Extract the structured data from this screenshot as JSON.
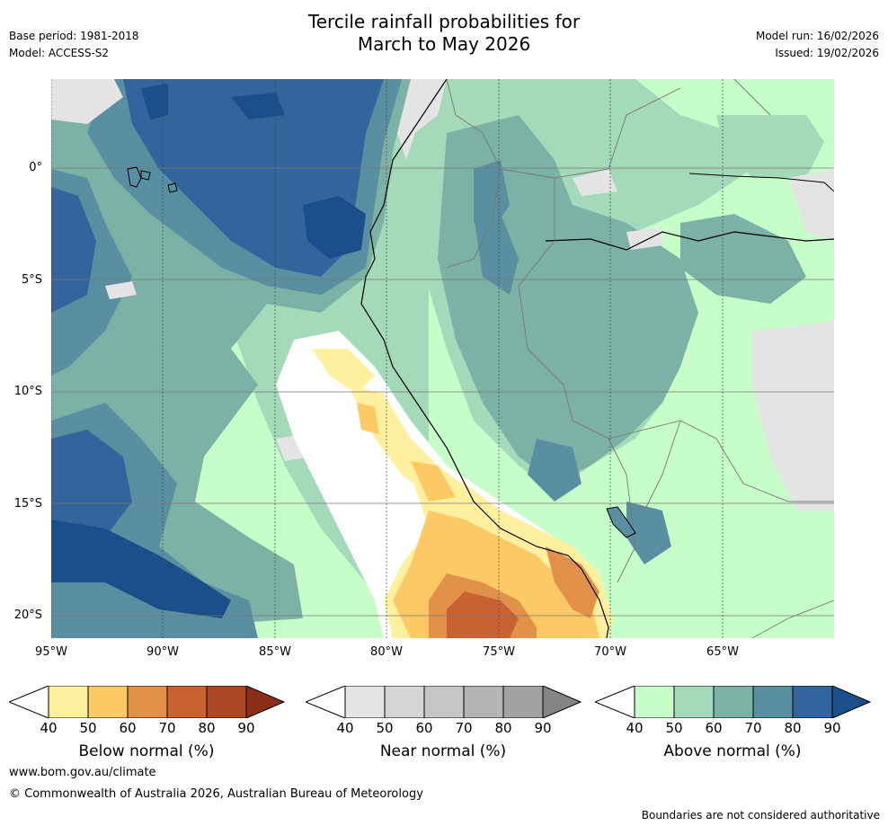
{
  "title": {
    "line1": "Tercile rainfall probabilities for",
    "line2": "March to May 2026"
  },
  "header": {
    "base_period": "Base period: 1981-2018",
    "model": "Model: ACCESS-S2",
    "model_run": "Model run: 16/02/2026",
    "issued": "Issued: 19/02/2026"
  },
  "map": {
    "lat_ticks": [
      "0°",
      "5°S",
      "10°S",
      "15°S",
      "20°S"
    ],
    "lon_ticks": [
      "95°W",
      "90°W",
      "85°W",
      "80°W",
      "75°W",
      "70°W",
      "65°W"
    ]
  },
  "colorbars": [
    {
      "label": "Below normal (%)",
      "ticks": [
        "40",
        "50",
        "60",
        "70",
        "80",
        "90"
      ],
      "colors": [
        "#fff0a0",
        "#fdc965",
        "#e1914a",
        "#c96232",
        "#ad4824",
        "#8c2e18"
      ]
    },
    {
      "label": "Near normal (%)",
      "ticks": [
        "40",
        "50",
        "60",
        "70",
        "80",
        "90"
      ],
      "colors": [
        "#e4e4e4",
        "#d5d5d5",
        "#c6c6c6",
        "#b5b5b5",
        "#a2a2a2",
        "#858585"
      ]
    },
    {
      "label": "Above normal (%)",
      "ticks": [
        "40",
        "50",
        "60",
        "70",
        "80",
        "90"
      ],
      "colors": [
        "#c7fdc9",
        "#a4dab9",
        "#7cb1a6",
        "#5a8fa2",
        "#33649c",
        "#1a4f8c"
      ]
    }
  ],
  "footer": {
    "website": "www.bom.gov.au/climate",
    "copyright": "© Commonwealth of Australia 2026, Australian Bureau of Meteorology",
    "disclaimer": "Boundaries are not considered authoritative"
  }
}
